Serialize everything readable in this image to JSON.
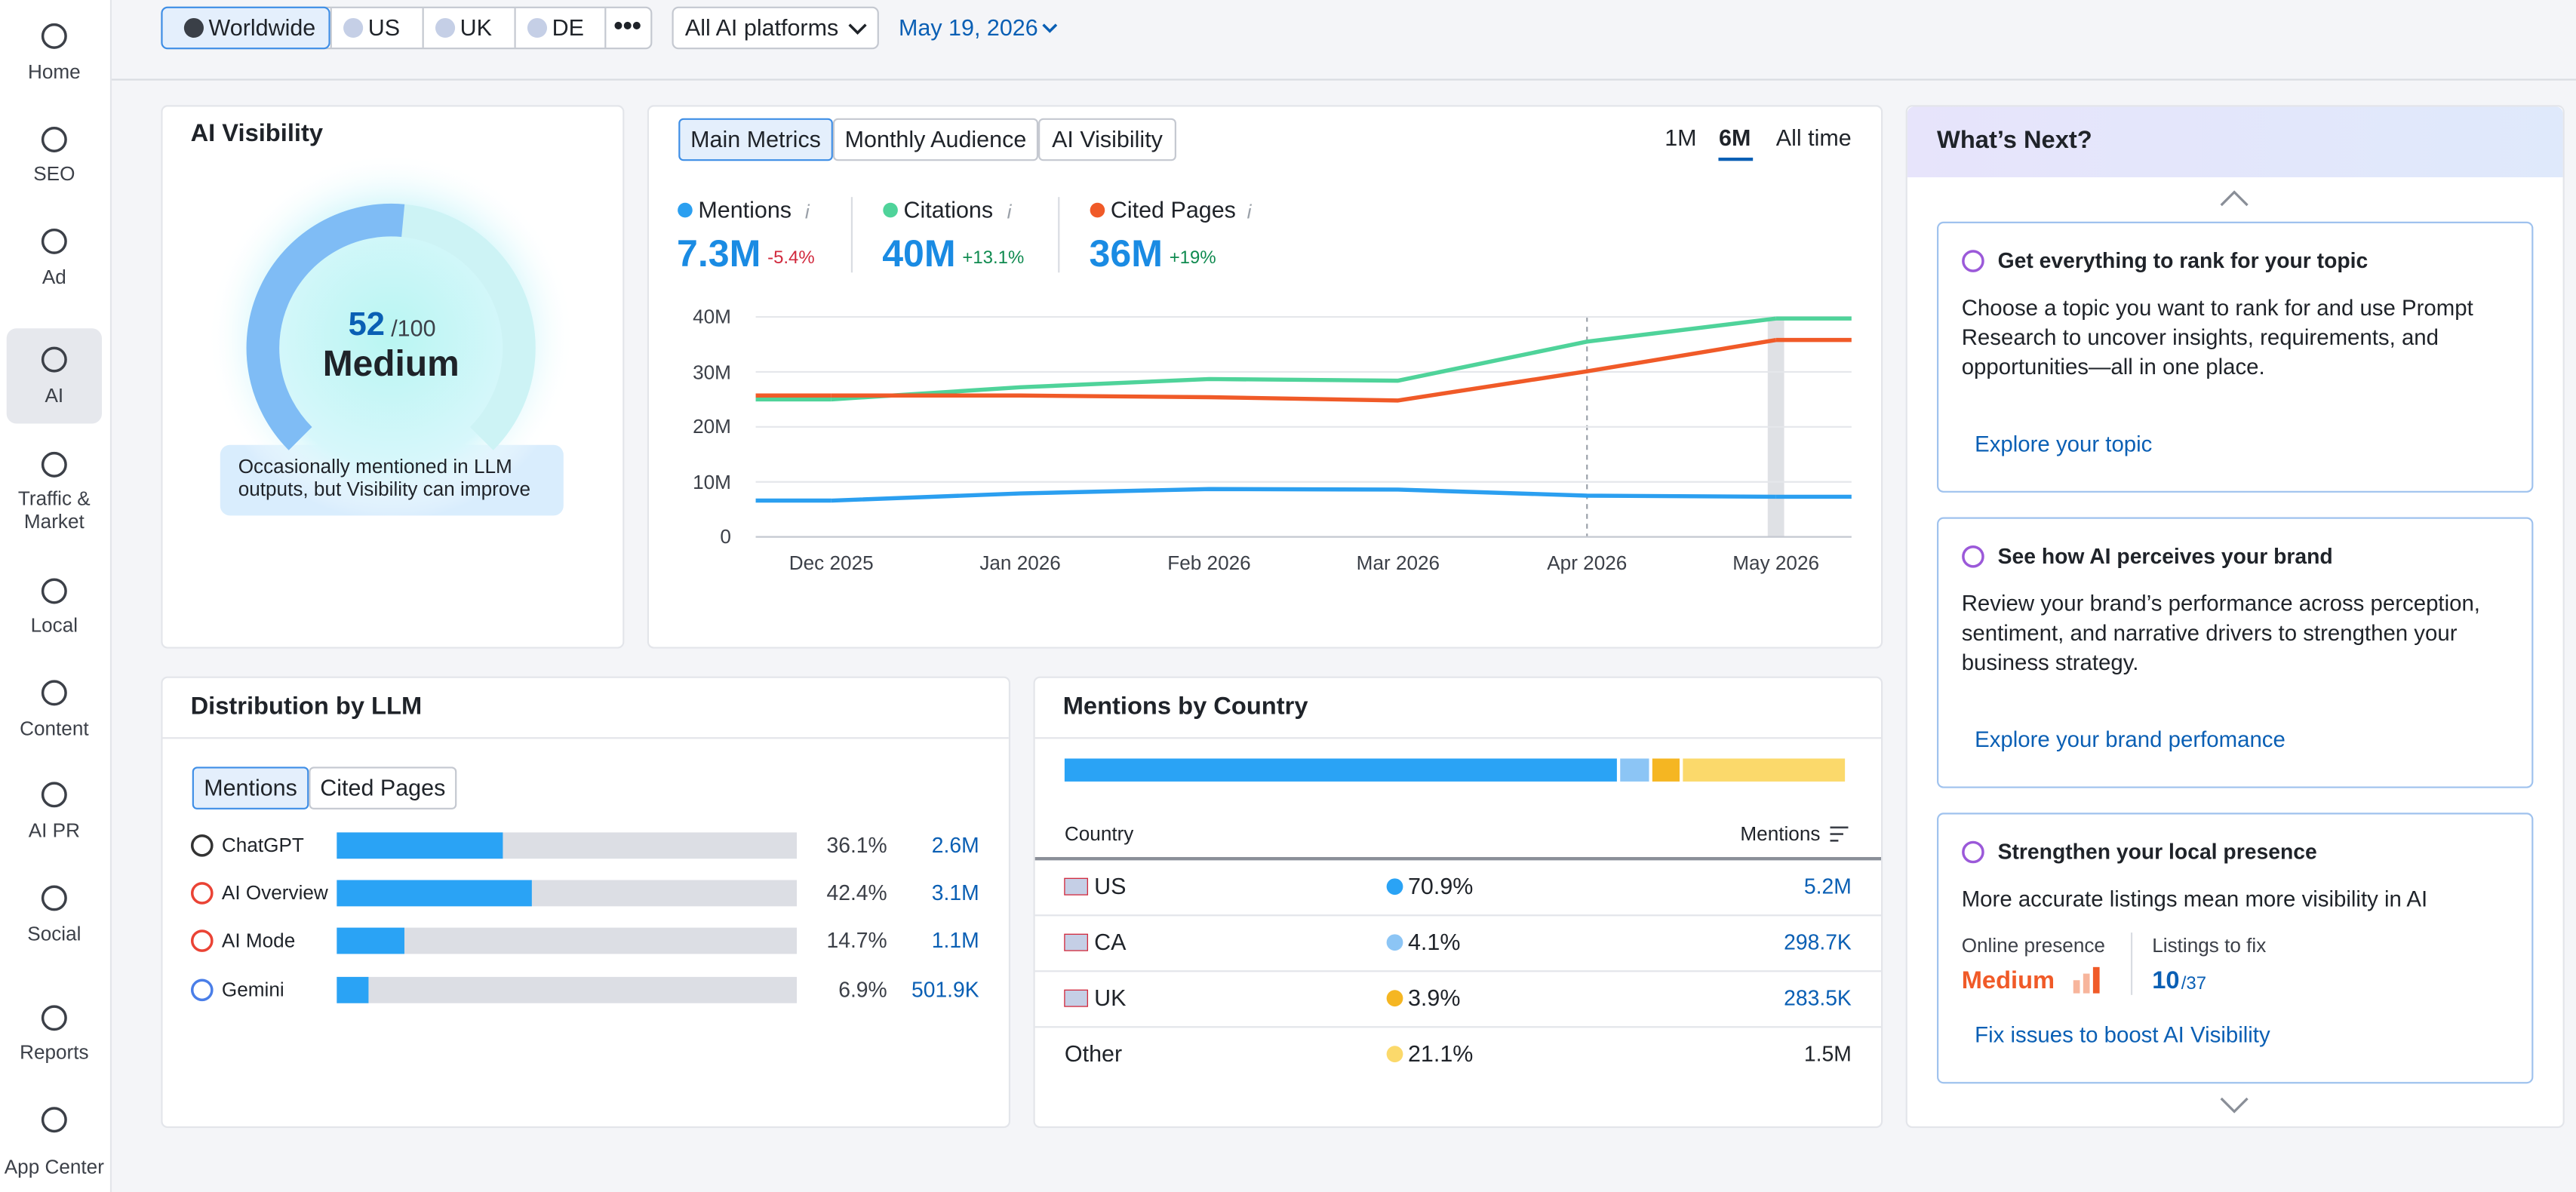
{
  "nav": {
    "items": [
      "Home",
      "SEO",
      "Ad",
      "AI",
      "Traffic & Market",
      "Local",
      "Content",
      "AI PR",
      "Social",
      "Reports",
      "App Center"
    ]
  },
  "toolbar": {
    "regions": [
      "Worldwide",
      "US",
      "UK",
      "DE"
    ],
    "platform": "All AI platforms",
    "date": "May 19, 2026"
  },
  "visibility": {
    "title": "AI Visibility",
    "score": 52,
    "max": {
      "value": 100,
      "label": "/100"
    },
    "level": "Medium",
    "note": "Occasionally mentioned in LLM outputs, but Visibility can improve"
  },
  "metrics": {
    "tabs": [
      "Main Metrics",
      "Monthly Audience",
      "AI Visibility"
    ],
    "ranges": [
      "1M",
      "6M",
      "All time"
    ],
    "kpis": [
      {
        "name": "Mentions",
        "value": "7.3M",
        "change": "-5.4%"
      },
      {
        "name": "Citations",
        "value": "40M",
        "change": "+13.1%"
      },
      {
        "name": "Cited Pages",
        "value": "36M",
        "change": "+19%"
      }
    ]
  },
  "chart_data": {
    "type": "line",
    "categories": [
      "Dec 2025",
      "Jan 2026",
      "Feb 2026",
      "Mar 2026",
      "Apr 2026",
      "May 2026"
    ],
    "series": [
      {
        "name": "Mentions",
        "color": "#2b9ff0",
        "values": [
          6600000,
          7900000,
          8700000,
          8600000,
          7500000,
          7300000
        ]
      },
      {
        "name": "Citations",
        "color": "#4fd39a",
        "values": [
          25000000,
          27200000,
          28700000,
          28400000,
          35500000,
          39700000
        ]
      },
      {
        "name": "Cited Pages",
        "color": "#f05a28",
        "values": [
          25700000,
          25700000,
          25400000,
          24800000,
          30100000,
          35800000
        ]
      }
    ],
    "ylim": [
      0,
      40000000
    ],
    "yticks": [
      0,
      {
        "value": 10000000,
        "label": "10M"
      },
      {
        "value": 20000000,
        "label": "20M"
      },
      {
        "value": 30000000,
        "label": "30M"
      },
      {
        "value": 40000000,
        "label": "40M"
      }
    ],
    "grid": true
  },
  "distribution": {
    "title": "Distribution by LLM",
    "tabs": [
      "Mentions",
      "Cited Pages"
    ],
    "rows": [
      {
        "name": "ChatGPT",
        "share": 36.1,
        "share_label": "36.1%",
        "count": "2.6M"
      },
      {
        "name": "AI Overview",
        "share": 42.4,
        "share_label": "42.4%",
        "count": "3.1M"
      },
      {
        "name": "AI Mode",
        "share": 14.7,
        "share_label": "14.7%",
        "count": "1.1M"
      },
      {
        "name": "Gemini",
        "share": 6.9,
        "share_label": "6.9%",
        "count": "501.9K"
      }
    ]
  },
  "country": {
    "title": "Mentions by Country",
    "columns": [
      "Country",
      "Mentions"
    ],
    "rows": [
      {
        "country": "US",
        "share": 70.9,
        "share_label": "70.9%",
        "mentions": "5.2M",
        "color": "#2aa3f5"
      },
      {
        "country": "CA",
        "share": 4.1,
        "share_label": "4.1%",
        "mentions": "298.7K",
        "color": "#8cc5f5"
      },
      {
        "country": "UK",
        "share": 3.9,
        "share_label": "3.9%",
        "mentions": "283.5K",
        "color": "#f5b622"
      },
      {
        "country": "Other",
        "share": 21.1,
        "share_label": "21.1%",
        "mentions": "1.5M",
        "color": "#fbd96b"
      }
    ]
  },
  "whats_next": {
    "title": "What’s Next?",
    "cards": [
      {
        "title": "Get everything to rank for your topic",
        "text": "Choose a topic you want to rank for and use Prompt Research to uncover insights, requirements, and opportunities—all in one place.",
        "link": "Explore your topic"
      },
      {
        "title": "See how AI perceives your brand",
        "text": "Review your brand’s performance across perception, sentiment, and narrative drivers to strengthen your business strategy.",
        "link": "Explore your brand perfomance"
      },
      {
        "title": "Strengthen your local presence",
        "text": "More accurate listings mean more visibility in AI",
        "link": "Fix issues to boost AI Visibility",
        "presence_label": "Online presence",
        "presence": "Medium",
        "listings_label": "Listings to fix",
        "listings": "10",
        "listings_total": "/37"
      }
    ]
  }
}
